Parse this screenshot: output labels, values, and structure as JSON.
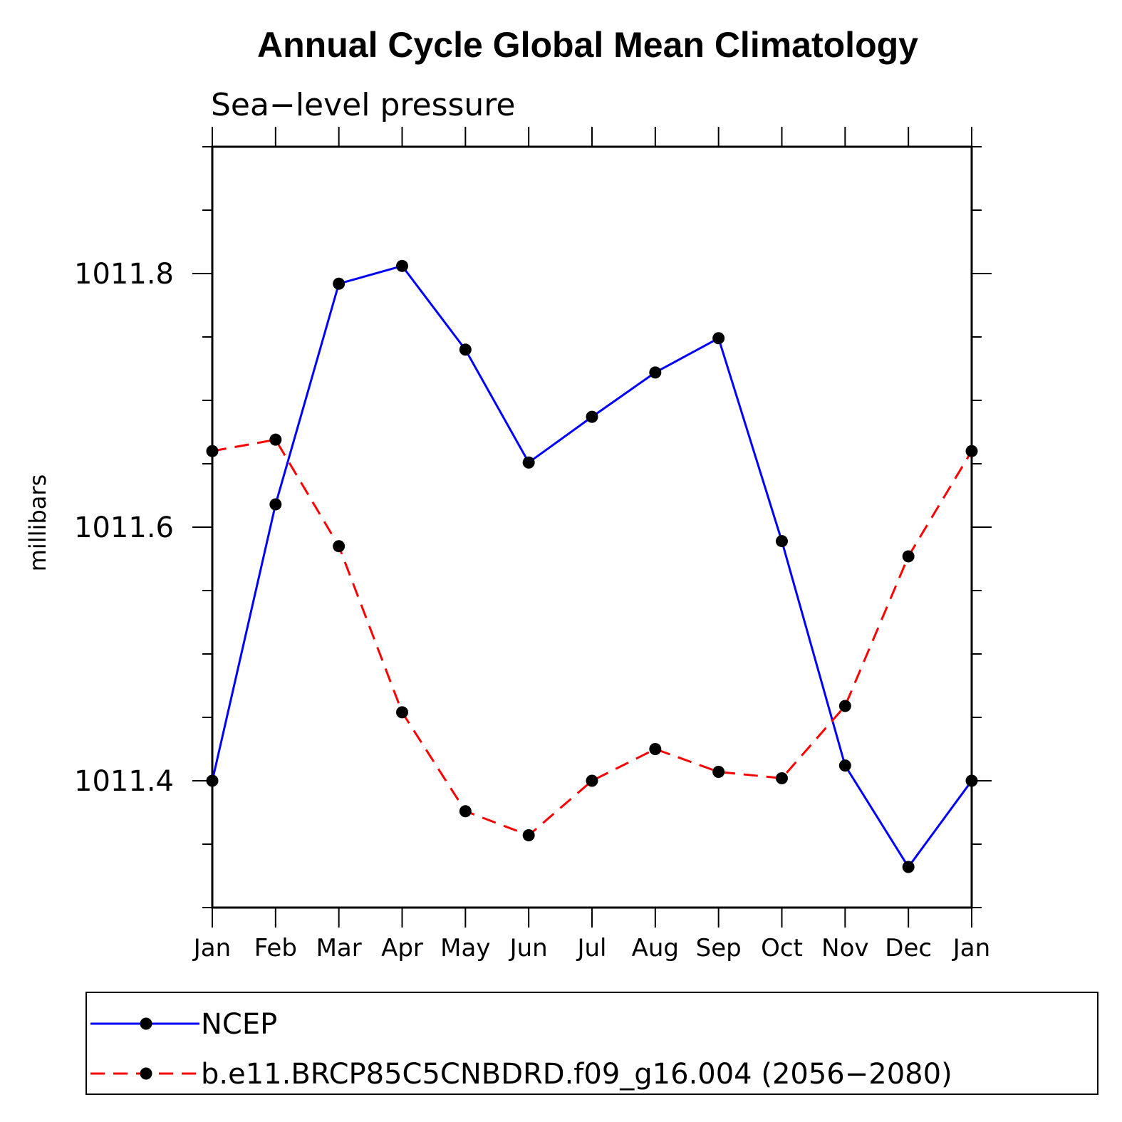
{
  "chart_data": {
    "type": "line",
    "title": "Annual Cycle Global Mean Climatology",
    "subtitle": "Sea−level pressure",
    "xlabel": "",
    "ylabel": "millibars",
    "categories": [
      "Jan",
      "Feb",
      "Mar",
      "Apr",
      "May",
      "Jun",
      "Jul",
      "Aug",
      "Sep",
      "Oct",
      "Nov",
      "Dec",
      "Jan"
    ],
    "ylim": [
      1011.3,
      1011.9
    ],
    "y_major_ticks": [
      1011.4,
      1011.6,
      1011.8
    ],
    "y_major_tick_labels": [
      "1011.4",
      "1011.6",
      "1011.8"
    ],
    "y_minor_step": 0.05,
    "grid": false,
    "legend_position": "bottom",
    "series": [
      {
        "name": "NCEP",
        "color": "#0000ff",
        "dash": "solid",
        "marker": "filled-circle",
        "values": [
          1011.4,
          1011.618,
          1011.792,
          1011.806,
          1011.74,
          1011.651,
          1011.687,
          1011.722,
          1011.749,
          1011.589,
          1011.412,
          1011.332,
          1011.4
        ]
      },
      {
        "name": "b.e11.BRCP85C5CNBDRD.f09_g16.004 (2056−2080)",
        "color": "#ff0000",
        "dash": "dashed",
        "marker": "filled-circle",
        "values": [
          1011.66,
          1011.669,
          1011.585,
          1011.454,
          1011.376,
          1011.357,
          1011.4,
          1011.425,
          1011.407,
          1011.402,
          1011.459,
          1011.577,
          1011.66
        ]
      }
    ]
  }
}
